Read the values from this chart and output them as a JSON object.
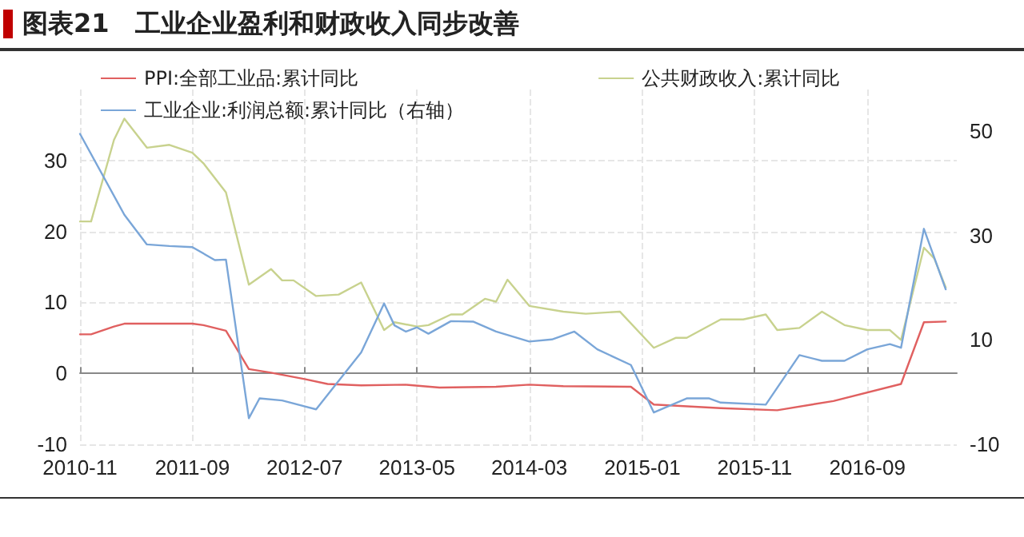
{
  "chart_data": {
    "type": "line",
    "title": "图表21　工业企业盈利和财政收入同步改善",
    "xlim": [
      "2010-11",
      "2017-05"
    ],
    "xticks": [
      "2010-11",
      "2011-09",
      "2012-07",
      "2013-05",
      "2014-03",
      "2015-01",
      "2015-11",
      "2016-09"
    ],
    "ylim": [
      -10,
      40
    ],
    "yticks": [
      -10,
      0,
      10,
      20,
      30
    ],
    "y2lim": [
      -10,
      58
    ],
    "y2ticks": [
      -10,
      10,
      30,
      50
    ],
    "grid": true,
    "legend": "top",
    "marker": "none",
    "line_style": "solid",
    "series": [
      {
        "name": "PPI:全部工业品:累计同比",
        "color": "#e06060",
        "x": [
          "2010-11",
          "2010-12",
          "2011-02",
          "2011-03",
          "2011-06",
          "2011-09",
          "2011-10",
          "2011-12",
          "2012-02",
          "2012-04",
          "2012-07",
          "2012-09",
          "2012-12",
          "2013-04",
          "2013-07",
          "2013-12",
          "2014-03",
          "2014-06",
          "2014-12",
          "2015-02",
          "2015-08",
          "2016-01",
          "2016-06",
          "2016-12",
          "2017-02",
          "2017-04"
        ],
        "values": [
          5.5,
          5.5,
          6.6,
          7.0,
          7.0,
          7.0,
          6.8,
          6.0,
          0.6,
          0.1,
          -0.8,
          -1.5,
          -1.7,
          -1.6,
          -2.0,
          -1.9,
          -1.6,
          -1.8,
          -1.9,
          -4.4,
          -4.9,
          -5.2,
          -3.9,
          -1.5,
          7.2,
          7.3
        ]
      },
      {
        "name": "公共财政收入:累计同比",
        "color": "#c8d28e",
        "x": [
          "2010-11",
          "2010-12",
          "2011-02",
          "2011-03",
          "2011-05",
          "2011-07",
          "2011-09",
          "2011-10",
          "2011-12",
          "2012-02",
          "2012-04",
          "2012-05",
          "2012-06",
          "2012-08",
          "2012-10",
          "2012-12",
          "2013-02",
          "2013-03",
          "2013-05",
          "2013-06",
          "2013-08",
          "2013-09",
          "2013-11",
          "2013-12",
          "2014-01",
          "2014-03",
          "2014-06",
          "2014-08",
          "2014-11",
          "2015-02",
          "2015-04",
          "2015-05",
          "2015-08",
          "2015-10",
          "2015-12",
          "2016-01",
          "2016-03",
          "2016-05",
          "2016-07",
          "2016-09",
          "2016-11",
          "2016-12",
          "2017-02",
          "2017-03",
          "2017-04"
        ],
        "values": [
          21.4,
          21.4,
          32.9,
          35.9,
          31.8,
          32.2,
          31.1,
          29.6,
          25.5,
          12.5,
          14.7,
          13.1,
          13.1,
          10.9,
          11.1,
          12.8,
          6.1,
          7.2,
          6.6,
          6.8,
          8.3,
          8.3,
          10.5,
          10.1,
          13.2,
          9.5,
          8.7,
          8.4,
          8.7,
          3.6,
          5.0,
          5.0,
          7.6,
          7.6,
          8.3,
          6.1,
          6.4,
          8.7,
          6.8,
          6.1,
          6.1,
          4.7,
          17.7,
          16.2,
          12.1
        ]
      },
      {
        "name": "工业企业:利润总额:累计同比（右轴）",
        "color": "#7aa6d8",
        "axis": "y2",
        "x": [
          "2010-11",
          "2011-03",
          "2011-05",
          "2011-07",
          "2011-09",
          "2011-11",
          "2011-12",
          "2012-02",
          "2012-03",
          "2012-05",
          "2012-08",
          "2012-12",
          "2013-02",
          "2013-03",
          "2013-04",
          "2013-05",
          "2013-06",
          "2013-08",
          "2013-10",
          "2013-12",
          "2014-03",
          "2014-05",
          "2014-07",
          "2014-09",
          "2014-12",
          "2015-02",
          "2015-05",
          "2015-07",
          "2015-08",
          "2015-12",
          "2016-03",
          "2016-05",
          "2016-07",
          "2016-09",
          "2016-11",
          "2016-12",
          "2017-02",
          "2017-04"
        ],
        "values": [
          49.5,
          34,
          28.3,
          28,
          27.8,
          25.3,
          25.4,
          -5.0,
          -1.2,
          -1.6,
          -3.3,
          7.6,
          17,
          12.8,
          11.6,
          12.4,
          11.2,
          13.6,
          13.5,
          11.6,
          9.7,
          10.1,
          11.6,
          8.2,
          5.2,
          -3.9,
          -1.2,
          -1.2,
          -2.0,
          -2.4,
          7.1,
          6,
          6,
          8.2,
          9.2,
          8.5,
          31.3,
          19.7
        ]
      }
    ]
  }
}
